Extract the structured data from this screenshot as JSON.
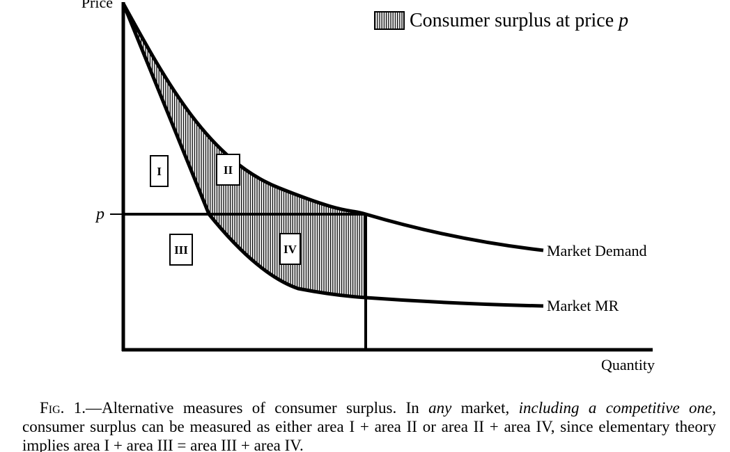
{
  "figure": {
    "axis_y_label": "Price",
    "axis_x_label": "Quantity",
    "price_label": "p",
    "legend": {
      "text": "Consumer surplus at price ",
      "variable": "p"
    },
    "curves": [
      "Market Demand",
      "Market MR"
    ],
    "regions": [
      "I",
      "II",
      "III",
      "IV"
    ]
  },
  "caption": {
    "parts": [
      {
        "text": "Fig. 1.",
        "style": "smallcaps"
      },
      {
        "text": "—Alternative measures of consumer surplus. In ",
        "style": "normal"
      },
      {
        "text": "any",
        "style": "italic"
      },
      {
        "text": " market, ",
        "style": "normal"
      },
      {
        "text": "including a competitive one",
        "style": "italic"
      },
      {
        "text": ", consumer surplus can be measured as either area I + area II or area II + area IV, since elementary theory implies area I + area III = area III + area IV.",
        "style": "normal"
      }
    ]
  }
}
